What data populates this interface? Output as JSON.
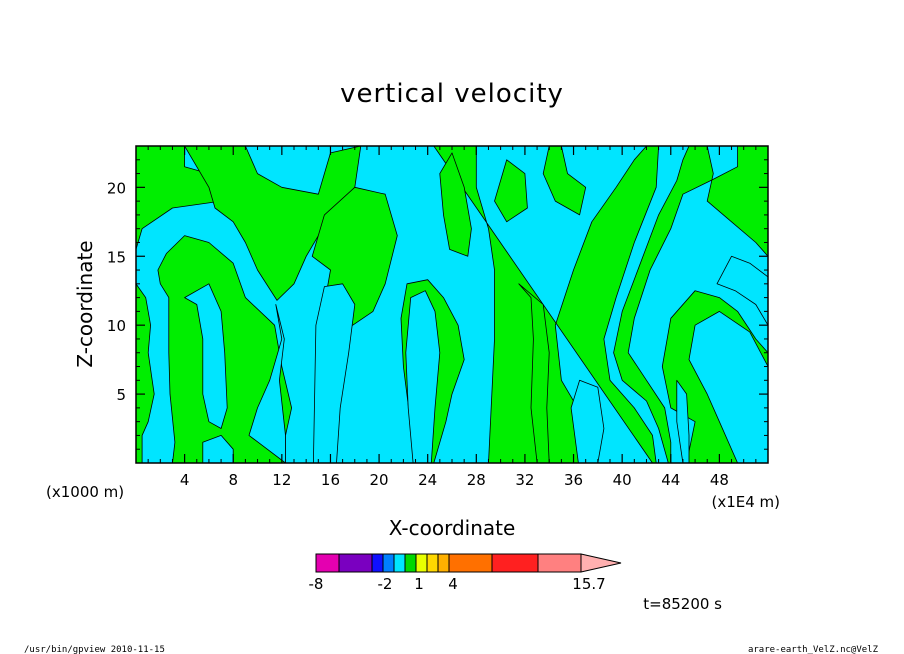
{
  "chart_data": {
    "type": "heatmap",
    "title": "vertical velocity",
    "xlabel": "X-coordinate",
    "ylabel": "Z-coordinate",
    "x_unit_left": "(x1000 m)",
    "x_unit_right": "(x1E4 m)",
    "xlim": [
      0,
      52
    ],
    "ylim": [
      0,
      23
    ],
    "xticks": [
      4,
      8,
      12,
      16,
      20,
      24,
      28,
      32,
      36,
      40,
      44,
      48
    ],
    "xtick_labels": [
      "4",
      "8",
      "12",
      "16",
      "20",
      "24",
      "28",
      "32",
      "36",
      "40",
      "44",
      "48"
    ],
    "yticks": [
      5,
      10,
      15,
      20
    ],
    "ytick_labels": [
      "5",
      "10",
      "15",
      "20"
    ],
    "negative_color": "#00e5ff",
    "positive_color": "#00ee00",
    "positive_regions": [
      [
        [
          0,
          23
        ],
        [
          4,
          23
        ],
        [
          4,
          21.5
        ],
        [
          6,
          21
        ],
        [
          7.5,
          20.5
        ],
        [
          7,
          19
        ],
        [
          3,
          18.5
        ],
        [
          0.5,
          17
        ],
        [
          0,
          15.5
        ]
      ],
      [
        [
          0,
          13
        ],
        [
          0.8,
          12
        ],
        [
          1.2,
          10
        ],
        [
          1,
          8
        ],
        [
          1.5,
          5
        ],
        [
          1,
          3
        ],
        [
          0.5,
          2
        ],
        [
          0.5,
          0
        ],
        [
          0,
          0
        ]
      ],
      [
        [
          2,
          13
        ],
        [
          2.7,
          12
        ],
        [
          2.7,
          8
        ],
        [
          2.8,
          5
        ],
        [
          3.2,
          1.5
        ],
        [
          3,
          0
        ],
        [
          5.5,
          0
        ],
        [
          5.5,
          1.5
        ],
        [
          7,
          2
        ],
        [
          8,
          1
        ],
        [
          8,
          0
        ],
        [
          12.3,
          0
        ],
        [
          12.3,
          2
        ],
        [
          12.8,
          4
        ],
        [
          12,
          7
        ],
        [
          11.4,
          10
        ],
        [
          9,
          12
        ],
        [
          8,
          14.5
        ],
        [
          6,
          16
        ],
        [
          4,
          16.5
        ],
        [
          2.5,
          15.2
        ],
        [
          1.8,
          14
        ]
      ],
      [
        [
          4,
          23
        ],
        [
          9,
          23
        ],
        [
          10,
          21
        ],
        [
          12,
          20
        ],
        [
          15,
          19.5
        ],
        [
          16,
          22.5
        ],
        [
          18.5,
          23
        ],
        [
          18,
          20
        ],
        [
          16,
          18
        ],
        [
          14,
          15
        ],
        [
          13,
          13
        ],
        [
          11.6,
          11.8
        ],
        [
          10,
          14
        ],
        [
          9,
          16
        ],
        [
          8,
          17.5
        ],
        [
          6.5,
          18.5
        ],
        [
          6,
          20
        ]
      ],
      [
        [
          14.5,
          15
        ],
        [
          16,
          14
        ],
        [
          15.5,
          11.5
        ],
        [
          17,
          9.5
        ],
        [
          19.5,
          11
        ],
        [
          20.5,
          13
        ],
        [
          21.5,
          16.5
        ],
        [
          20.5,
          19.5
        ],
        [
          18,
          20
        ],
        [
          15.5,
          18
        ]
      ],
      [
        [
          22.3,
          13
        ],
        [
          24,
          13.3
        ],
        [
          25.3,
          12
        ],
        [
          26.5,
          10
        ],
        [
          27,
          7.5
        ],
        [
          26,
          5
        ],
        [
          25.5,
          3
        ],
        [
          24.5,
          0
        ],
        [
          23,
          0
        ],
        [
          22.5,
          3.5
        ],
        [
          22,
          7
        ],
        [
          21.8,
          10.5
        ]
      ],
      [
        [
          24.5,
          23
        ],
        [
          28,
          23
        ],
        [
          28,
          20
        ],
        [
          29,
          17
        ],
        [
          29.5,
          14
        ],
        [
          29.5,
          9
        ],
        [
          29,
          0
        ],
        [
          37,
          0
        ],
        [
          37,
          3
        ],
        [
          35,
          6
        ],
        [
          34.5,
          10
        ],
        [
          36,
          14
        ],
        [
          37.5,
          17.5
        ],
        [
          39.5,
          20
        ],
        [
          41,
          22
        ],
        [
          42,
          23
        ],
        [
          43,
          23
        ],
        [
          42.8,
          20
        ],
        [
          41,
          16
        ],
        [
          39.5,
          12
        ],
        [
          38.5,
          9
        ],
        [
          39,
          6
        ],
        [
          41,
          4
        ],
        [
          42.5,
          2
        ],
        [
          42.8,
          0
        ],
        [
          43.8,
          0
        ],
        [
          43,
          2.5
        ],
        [
          42,
          4.5
        ],
        [
          40,
          6
        ],
        [
          39.3,
          8
        ],
        [
          40,
          11
        ],
        [
          41.5,
          14.5
        ],
        [
          43,
          18
        ],
        [
          44.5,
          20.5
        ],
        [
          45,
          22
        ],
        [
          45.5,
          23
        ],
        [
          47,
          23
        ],
        [
          47.5,
          21
        ],
        [
          47,
          19
        ],
        [
          49,
          17.5
        ],
        [
          51,
          16
        ],
        [
          52,
          15
        ],
        [
          52,
          8
        ],
        [
          51,
          9
        ],
        [
          49.5,
          11
        ],
        [
          48,
          12
        ],
        [
          46,
          12.5
        ],
        [
          44,
          10.5
        ],
        [
          43.3,
          7
        ],
        [
          44,
          4
        ],
        [
          46,
          3
        ],
        [
          45.3,
          0
        ],
        [
          52,
          0
        ],
        [
          52,
          0
        ],
        [
          49.5,
          0
        ],
        [
          48,
          3
        ],
        [
          47,
          5
        ],
        [
          45.5,
          7.5
        ],
        [
          46,
          10
        ],
        [
          48,
          11
        ],
        [
          50.5,
          9.5
        ],
        [
          52,
          7
        ],
        [
          52,
          23
        ],
        [
          49.5,
          23
        ],
        [
          49.5,
          21.5
        ],
        [
          47.3,
          20.5
        ],
        [
          45,
          19.5
        ],
        [
          44,
          17
        ],
        [
          42.3,
          14
        ],
        [
          41,
          10.5
        ],
        [
          40.5,
          8
        ],
        [
          42,
          6
        ],
        [
          43.5,
          4
        ],
        [
          44,
          1.5
        ],
        [
          44,
          0
        ],
        [
          42.5,
          0
        ]
      ],
      [
        [
          26,
          22.5
        ],
        [
          27,
          20
        ],
        [
          27.6,
          17
        ],
        [
          27.3,
          15
        ],
        [
          25.8,
          15.5
        ],
        [
          25.3,
          18
        ],
        [
          25,
          21
        ]
      ],
      [
        [
          34,
          23
        ],
        [
          35,
          23
        ],
        [
          35.5,
          21
        ],
        [
          37,
          20
        ],
        [
          36.5,
          18
        ],
        [
          34.5,
          19
        ],
        [
          33.5,
          21
        ]
      ],
      [
        [
          30.5,
          22
        ],
        [
          32,
          21
        ],
        [
          32.2,
          18.5
        ],
        [
          30.5,
          17.5
        ],
        [
          29.5,
          19
        ]
      ],
      [
        [
          31.5,
          13
        ],
        [
          32.5,
          12
        ],
        [
          32.7,
          9
        ],
        [
          32.5,
          4
        ],
        [
          33,
          0
        ],
        [
          34,
          0
        ],
        [
          33.8,
          4
        ],
        [
          34,
          8
        ],
        [
          33.5,
          11.5
        ]
      ]
    ],
    "negative_islands": [
      [
        [
          11.5,
          11.5
        ],
        [
          12,
          9
        ],
        [
          11,
          6
        ],
        [
          10,
          4
        ],
        [
          9.3,
          2
        ],
        [
          12.3,
          0
        ],
        [
          12.3,
          0
        ],
        [
          12.3,
          2
        ],
        [
          11.8,
          6
        ],
        [
          12.2,
          9
        ]
      ],
      [
        [
          14.6,
          0
        ],
        [
          16.5,
          0
        ],
        [
          16.8,
          4
        ],
        [
          17.5,
          8
        ],
        [
          18,
          11.5
        ],
        [
          17,
          13
        ],
        [
          15.5,
          12.8
        ],
        [
          14.8,
          10
        ]
      ],
      [
        [
          22.8,
          0
        ],
        [
          24.3,
          0
        ],
        [
          24.6,
          4
        ],
        [
          25,
          8
        ],
        [
          24.6,
          11
        ],
        [
          23.8,
          12.5
        ],
        [
          22.6,
          12
        ],
        [
          22.2,
          8
        ],
        [
          22.4,
          4
        ]
      ],
      [
        [
          36.4,
          0
        ],
        [
          38,
          0
        ],
        [
          38.5,
          2.5
        ],
        [
          38,
          5.5
        ],
        [
          36.5,
          6
        ],
        [
          35.8,
          4
        ]
      ],
      [
        [
          44.5,
          3
        ],
        [
          45,
          0
        ],
        [
          45.5,
          0
        ],
        [
          45.5,
          2
        ],
        [
          45.3,
          5
        ],
        [
          44.5,
          6
        ]
      ],
      [
        [
          47.8,
          13
        ],
        [
          49.3,
          12.5
        ],
        [
          51,
          11.5
        ],
        [
          52,
          10
        ],
        [
          52,
          13.5
        ],
        [
          50.5,
          14.5
        ],
        [
          49,
          15
        ]
      ],
      [
        [
          4,
          12
        ],
        [
          5,
          11.5
        ],
        [
          5.5,
          9
        ],
        [
          5.5,
          5
        ],
        [
          6,
          3
        ],
        [
          7,
          2.5
        ],
        [
          7.5,
          4
        ],
        [
          7.3,
          8
        ],
        [
          7,
          11
        ],
        [
          6,
          13
        ]
      ]
    ],
    "colorbar": {
      "colors": [
        "#e400b0",
        "#7a00c0",
        "#1010ff",
        "#0080ff",
        "#00e5ff",
        "#00d800",
        "#e8ff00",
        "#ffd800",
        "#ffb000",
        "#ff7000",
        "#ff2020",
        "#ff8080",
        "#ffb0b0"
      ],
      "labels": [
        "-8",
        "-2",
        "1",
        "4",
        "15.7"
      ]
    },
    "time_label": "t=85200 s"
  },
  "footer": {
    "left": "/usr/bin/gpview  2010-11-15",
    "right": "arare-earth_VelZ.nc@VelZ"
  }
}
